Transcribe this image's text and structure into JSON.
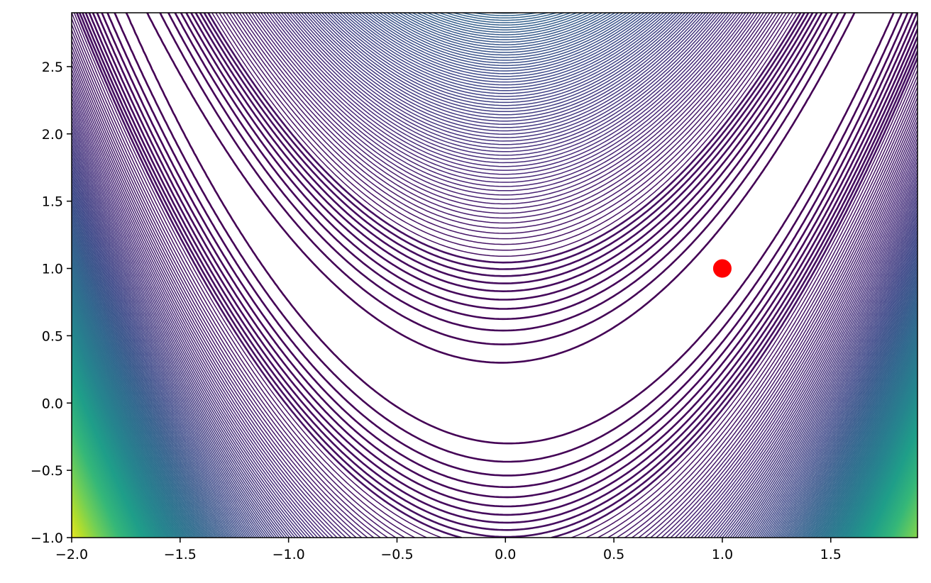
{
  "chart_data": {
    "type": "contour",
    "function": "rosenbrock",
    "function_params": {
      "a": 1,
      "b": 100
    },
    "title": "",
    "xlabel": "",
    "ylabel": "",
    "xlim": [
      -2.0,
      1.9
    ],
    "ylim": [
      -1.0,
      2.9
    ],
    "x_ticks": [
      -2.0,
      -1.5,
      -1.0,
      -0.5,
      0.0,
      0.5,
      1.0,
      1.5
    ],
    "x_tick_labels": [
      "−2.0",
      "−1.5",
      "−1.0",
      "−0.5",
      "0.0",
      "0.5",
      "1.0",
      "1.5"
    ],
    "y_ticks": [
      -1.0,
      -0.5,
      0.0,
      0.5,
      1.0,
      1.5,
      2.0,
      2.5
    ],
    "y_tick_labels": [
      "−1.0",
      "−0.5",
      "0.0",
      "0.5",
      "1.0",
      "1.5",
      "2.0",
      "2.5"
    ],
    "contour_levels": {
      "start": 0,
      "step": 10,
      "max": 2600
    },
    "colormap": [
      "#440154",
      "#482878",
      "#3e4989",
      "#31688e",
      "#26828e",
      "#1f9e89",
      "#35b779",
      "#6ece58",
      "#b5de2b",
      "#fde725"
    ],
    "grid": false,
    "legend": "none",
    "markers": [
      {
        "name": "minimum",
        "x": 1.0,
        "y": 1.0,
        "color": "#ff0000"
      }
    ]
  }
}
